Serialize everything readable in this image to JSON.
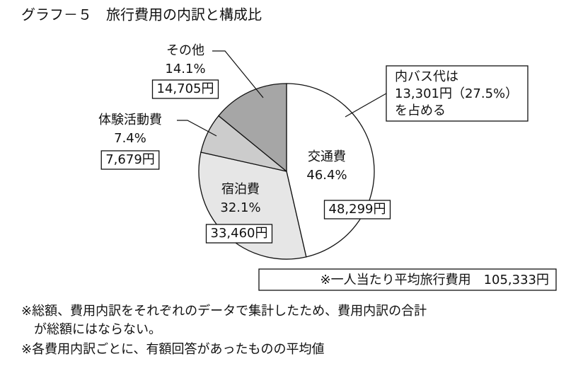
{
  "chart_data": {
    "type": "pie",
    "title": "グラフ－５　旅行費用の内訳と構成比",
    "categories": [
      "交通費",
      "宿泊費",
      "体験活動費",
      "その他"
    ],
    "values": [
      46.4,
      32.1,
      7.4,
      14.1
    ],
    "value_labels": [
      "46.4%",
      "32.1%",
      "7.4%",
      "14.1%"
    ],
    "amounts": [
      48299,
      33460,
      7679,
      14705
    ],
    "amount_labels": [
      "48,299円",
      "33,460円",
      "7,679円",
      "14,705円"
    ],
    "colors": [
      "#ffffff",
      "#e6e6e6",
      "#cccccc",
      "#a6a6a6"
    ],
    "annotation": [
      "内バス代は",
      "13,301円（27.5%）",
      "を占める"
    ],
    "total_note": "※一人当たり平均旅行費用　105,333円",
    "footnotes": [
      "※総額、費用内訳をそれぞれのデータで集計したため、費用内訳の合計",
      "　が総額にはならない。",
      "※各費用内訳ごとに、有額回答があったものの平均値"
    ]
  }
}
